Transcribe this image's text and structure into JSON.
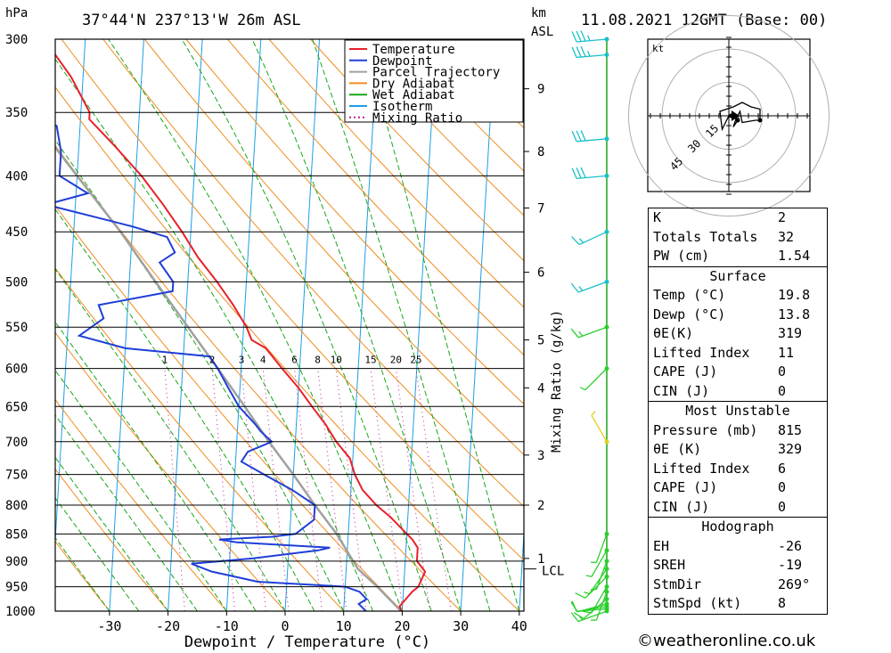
{
  "header": {
    "pressure_unit": "hPa",
    "location": "37°44'N  237°13'W  26m  ASL",
    "km_label": "km",
    "asl_label": "ASL",
    "datetime": "11.08.2021  12GMT  (Base: 00)"
  },
  "chart_data": {
    "type": "skew-t",
    "xlabel": "Dewpoint / Temperature (°C)",
    "x_ticks": [
      -30,
      -20,
      -10,
      0,
      10,
      20,
      30,
      40
    ],
    "pressure_levels": [
      300,
      350,
      400,
      450,
      500,
      550,
      600,
      650,
      700,
      750,
      800,
      850,
      900,
      950,
      1000
    ],
    "height_km_ticks": [
      {
        "label": "1",
        "p": 895
      },
      {
        "label": "2",
        "p": 800
      },
      {
        "label": "3",
        "p": 720
      },
      {
        "label": "4",
        "p": 625
      },
      {
        "label": "5",
        "p": 565
      },
      {
        "label": "6",
        "p": 490
      },
      {
        "label": "7",
        "p": 428
      },
      {
        "label": "8",
        "p": 380
      },
      {
        "label": "9",
        "p": 333
      }
    ],
    "lcl_label": "LCL",
    "lcl_pressure": 915,
    "mixing_ratio_label": "Mixing Ratio (g/kg)",
    "mixing_ratio_values": [
      "1",
      "2",
      "3",
      "4",
      "6",
      "8",
      "10",
      "15",
      "20",
      "25"
    ],
    "legend": [
      {
        "name": "Temperature",
        "color": "#e8202a",
        "style": "solid"
      },
      {
        "name": "Dewpoint",
        "color": "#1f3fd8",
        "style": "solid"
      },
      {
        "name": "Parcel Trajectory",
        "color": "#a0a0a0",
        "style": "solid"
      },
      {
        "name": "Dry Adiabat",
        "color": "#f08c1e",
        "style": "solid"
      },
      {
        "name": "Wet Adiabat",
        "color": "#1aa51a",
        "style": "solid"
      },
      {
        "name": "Isotherm",
        "color": "#1e9ee8",
        "style": "solid"
      },
      {
        "name": "Mixing Ratio",
        "color": "#c0208a",
        "style": "dotted"
      }
    ],
    "temperature": [
      [
        1000,
        19.8
      ],
      [
        990,
        19.5
      ],
      [
        975,
        20.5
      ],
      [
        960,
        21.5
      ],
      [
        950,
        22.5
      ],
      [
        935,
        23
      ],
      [
        920,
        23.5
      ],
      [
        900,
        22
      ],
      [
        875,
        22
      ],
      [
        860,
        21
      ],
      [
        850,
        20
      ],
      [
        820,
        17
      ],
      [
        800,
        14.5
      ],
      [
        775,
        12
      ],
      [
        750,
        10.5
      ],
      [
        725,
        9.5
      ],
      [
        700,
        7
      ],
      [
        675,
        5
      ],
      [
        650,
        2.5
      ],
      [
        625,
        0
      ],
      [
        600,
        -3
      ],
      [
        575,
        -6
      ],
      [
        565,
        -8.5
      ],
      [
        550,
        -9.5
      ],
      [
        525,
        -12
      ],
      [
        500,
        -15
      ],
      [
        475,
        -18.5
      ],
      [
        450,
        -21.5
      ],
      [
        425,
        -25
      ],
      [
        400,
        -29
      ],
      [
        375,
        -34
      ],
      [
        355,
        -38.5
      ],
      [
        350,
        -38.5
      ],
      [
        325,
        -42
      ],
      [
        300,
        -47
      ]
    ],
    "dewpoint": [
      [
        1000,
        13.8
      ],
      [
        985,
        12.5
      ],
      [
        975,
        13.8
      ],
      [
        960,
        12.5
      ],
      [
        950,
        10
      ],
      [
        940,
        -5
      ],
      [
        920,
        -13
      ],
      [
        905,
        -16.5
      ],
      [
        895,
        -6
      ],
      [
        880,
        5
      ],
      [
        875,
        7
      ],
      [
        865,
        -9
      ],
      [
        860,
        -12
      ],
      [
        855,
        -3
      ],
      [
        850,
        1
      ],
      [
        825,
        4
      ],
      [
        800,
        4
      ],
      [
        775,
        0
      ],
      [
        750,
        -5
      ],
      [
        730,
        -9
      ],
      [
        715,
        -8
      ],
      [
        700,
        -4
      ],
      [
        685,
        -6
      ],
      [
        675,
        -7
      ],
      [
        650,
        -10
      ],
      [
        625,
        -12
      ],
      [
        600,
        -14
      ],
      [
        585,
        -15.5
      ],
      [
        575,
        -30
      ],
      [
        560,
        -38
      ],
      [
        540,
        -34
      ],
      [
        525,
        -35
      ],
      [
        510,
        -22.5
      ],
      [
        500,
        -22.5
      ],
      [
        480,
        -25
      ],
      [
        470,
        -22.5
      ],
      [
        455,
        -24
      ],
      [
        445,
        -30
      ],
      [
        425,
        -45
      ],
      [
        415,
        -38
      ],
      [
        400,
        -43
      ],
      [
        380,
        -43
      ],
      [
        360,
        -44
      ],
      [
        350,
        -50
      ],
      [
        340,
        -57
      ],
      [
        320,
        -60
      ],
      [
        300,
        -63.5
      ]
    ],
    "parcel": [
      [
        1000,
        19.8
      ],
      [
        950,
        15.5
      ],
      [
        915,
        12
      ],
      [
        850,
        8
      ],
      [
        800,
        4
      ],
      [
        750,
        0
      ],
      [
        700,
        -4.5
      ],
      [
        650,
        -9
      ],
      [
        600,
        -14
      ],
      [
        550,
        -19.5
      ],
      [
        500,
        -25.5
      ],
      [
        450,
        -32
      ],
      [
        400,
        -40
      ],
      [
        350,
        -49
      ],
      [
        300,
        -60
      ]
    ]
  },
  "wind_barbs": [
    {
      "p": 1000,
      "dir": 250,
      "spd": 15
    },
    {
      "p": 995,
      "dir": 265,
      "spd": 10
    },
    {
      "p": 990,
      "dir": 260,
      "spd": 10
    },
    {
      "p": 985,
      "dir": 255,
      "spd": 10
    },
    {
      "p": 975,
      "dir": 230,
      "spd": 10
    },
    {
      "p": 960,
      "dir": 200,
      "spd": 5
    },
    {
      "p": 950,
      "dir": 210,
      "spd": 10
    },
    {
      "p": 930,
      "dir": 225,
      "spd": 10
    },
    {
      "p": 915,
      "dir": 215,
      "spd": 5
    },
    {
      "p": 900,
      "dir": 200,
      "spd": 5
    },
    {
      "p": 880,
      "dir": 210,
      "spd": 5
    },
    {
      "p": 850,
      "dir": 200,
      "spd": 5
    },
    {
      "p": 700,
      "dir": 330,
      "spd": 5
    },
    {
      "p": 600,
      "dir": 225,
      "spd": 5
    },
    {
      "p": 550,
      "dir": 250,
      "spd": 15
    },
    {
      "p": 500,
      "dir": 250,
      "spd": 15
    },
    {
      "p": 450,
      "dir": 245,
      "spd": 15
    },
    {
      "p": 400,
      "dir": 265,
      "spd": 30
    },
    {
      "p": 370,
      "dir": 265,
      "spd": 30
    },
    {
      "p": 310,
      "dir": 265,
      "spd": 35
    },
    {
      "p": 300,
      "dir": 265,
      "spd": 35
    }
  ],
  "hodograph": {
    "unit": "kt",
    "ring_labels": [
      "15",
      "30",
      "45"
    ],
    "trace": [
      [
        0,
        0
      ],
      [
        -3,
        -6
      ],
      [
        -4,
        2
      ],
      [
        2,
        4
      ],
      [
        6,
        6
      ],
      [
        10,
        4
      ],
      [
        14,
        3
      ],
      [
        14,
        -2
      ],
      [
        12,
        -2
      ],
      [
        6,
        -3
      ],
      [
        5,
        2
      ],
      [
        3,
        -2
      ],
      [
        2,
        -5
      ],
      [
        4,
        -2
      ],
      [
        1,
        0
      ]
    ],
    "points": [
      [
        1,
        0
      ],
      [
        4,
        -2
      ],
      [
        14,
        -2
      ]
    ]
  },
  "indices": {
    "general": [
      {
        "label": "K",
        "value": "2"
      },
      {
        "label": "Totals Totals",
        "value": "32"
      },
      {
        "label": "PW (cm)",
        "value": "1.54"
      }
    ],
    "surface": {
      "title": "Surface",
      "rows": [
        {
          "label": "Temp (°C)",
          "value": "19.8"
        },
        {
          "label": "Dewp (°C)",
          "value": "13.8"
        },
        {
          "label": "θE(K)",
          "value": "319"
        },
        {
          "label": "Lifted Index",
          "value": "11"
        },
        {
          "label": "CAPE (J)",
          "value": "0"
        },
        {
          "label": "CIN (J)",
          "value": "0"
        }
      ]
    },
    "most_unstable": {
      "title": "Most Unstable",
      "rows": [
        {
          "label": "Pressure (mb)",
          "value": "815"
        },
        {
          "label": "θE (K)",
          "value": "329"
        },
        {
          "label": "Lifted Index",
          "value": "6"
        },
        {
          "label": "CAPE (J)",
          "value": "0"
        },
        {
          "label": "CIN (J)",
          "value": "0"
        }
      ]
    },
    "hodograph_table": {
      "title": "Hodograph",
      "rows": [
        {
          "label": "EH",
          "value": "-26"
        },
        {
          "label": "SREH",
          "value": "-19"
        },
        {
          "label": "StmDir",
          "value": "269°"
        },
        {
          "label": "StmSpd (kt)",
          "value": "8"
        }
      ]
    }
  },
  "credit": "©weatheronline.co.uk"
}
